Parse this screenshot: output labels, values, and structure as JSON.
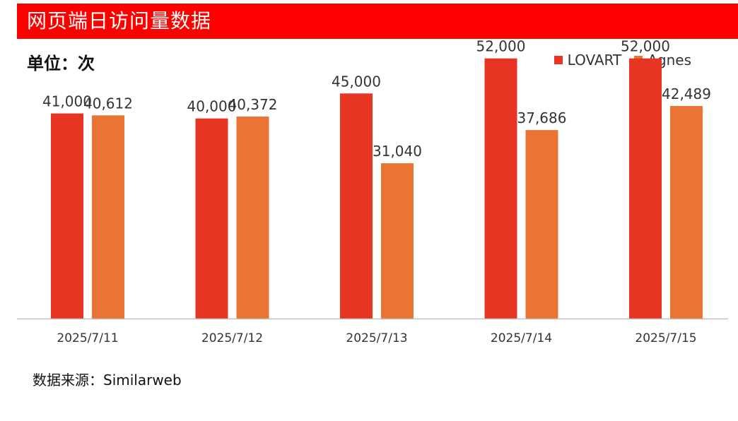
{
  "header": {
    "title": "网页端日访问量数据"
  },
  "unit": "单位：次",
  "source": "数据来源：Similarweb",
  "colors": {
    "title_bar": "#ff0000",
    "lovart": "#e63623",
    "agnes": "#ea7433"
  },
  "chart_data": {
    "type": "bar",
    "title": "网页端日访问量数据",
    "categories": [
      "2025/7/11",
      "2025/7/12",
      "2025/7/13",
      "2025/7/14",
      "2025/7/15"
    ],
    "series": [
      {
        "name": "LOVART",
        "values": [
          41000,
          40000,
          45000,
          52000,
          52000
        ],
        "labels": [
          "41,000",
          "40,000",
          "45,000",
          "52,000",
          "52,000"
        ]
      },
      {
        "name": "Agnes",
        "values": [
          40612,
          40372,
          31040,
          37686,
          42489
        ],
        "labels": [
          "40,612",
          "40,372",
          "31,040",
          "37,686",
          "42,489"
        ]
      }
    ],
    "ylim": [
      0,
      60000
    ],
    "grid": false,
    "legend": "top-right"
  }
}
